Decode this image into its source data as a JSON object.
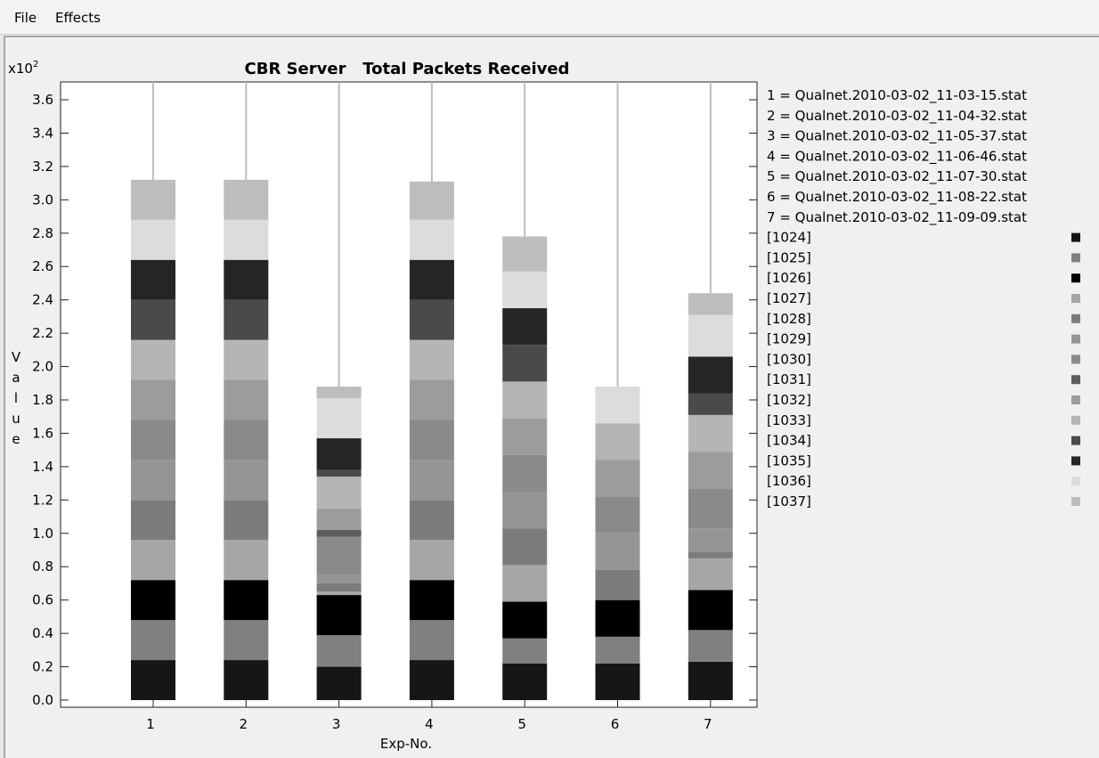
{
  "menu": {
    "file": "File",
    "effects": "Effects"
  },
  "chart_data": {
    "type": "bar",
    "stacked": true,
    "title": "CBR Server   Total Packets Received",
    "xlabel": "Exp-No.",
    "ylabel": "Value",
    "yscale_label": "x10",
    "yscale_exp": "2",
    "ylim": [
      0,
      3.6
    ],
    "yticks": [
      "0.0",
      "0.2",
      "0.4",
      "0.6",
      "0.8",
      "1.0",
      "1.2",
      "1.4",
      "1.6",
      "1.8",
      "2.0",
      "2.2",
      "2.4",
      "2.6",
      "2.8",
      "3.0",
      "3.2",
      "3.4",
      "3.6"
    ],
    "categories": [
      "1",
      "2",
      "3",
      "4",
      "5",
      "6",
      "7"
    ],
    "experiments": [
      "1 = Qualnet.2010-03-02_11-03-15.stat",
      "2 = Qualnet.2010-03-02_11-04-32.stat",
      "3 = Qualnet.2010-03-02_11-05-37.stat",
      "4 = Qualnet.2010-03-02_11-06-46.stat",
      "5 = Qualnet.2010-03-02_11-07-30.stat",
      "6 = Qualnet.2010-03-02_11-08-22.stat",
      "7 = Qualnet.2010-03-02_11-09-09.stat"
    ],
    "grid": false,
    "legend_position": "right",
    "series": [
      {
        "name": "[1024]",
        "color": "#161616",
        "values": [
          0.24,
          0.24,
          0.2,
          0.24,
          0.22,
          0.22,
          0.23
        ]
      },
      {
        "name": "[1025]",
        "color": "#808080",
        "values": [
          0.24,
          0.24,
          0.19,
          0.24,
          0.15,
          0.16,
          0.19
        ]
      },
      {
        "name": "[1026]",
        "color": "#000000",
        "values": [
          0.24,
          0.24,
          0.24,
          0.24,
          0.22,
          0.22,
          0.24
        ]
      },
      {
        "name": "[1027]",
        "color": "#a6a6a6",
        "values": [
          0.24,
          0.24,
          0.02,
          0.24,
          0.22,
          0.0,
          0.19
        ]
      },
      {
        "name": "[1028]",
        "color": "#7c7c7c",
        "values": [
          0.24,
          0.24,
          0.05,
          0.24,
          0.22,
          0.18,
          0.04
        ]
      },
      {
        "name": "[1029]",
        "color": "#959595",
        "values": [
          0.24,
          0.24,
          0.05,
          0.24,
          0.22,
          0.22,
          0.14
        ]
      },
      {
        "name": "[1030]",
        "color": "#8a8a8a",
        "values": [
          0.24,
          0.24,
          0.23,
          0.24,
          0.22,
          0.22,
          0.24
        ]
      },
      {
        "name": "[1031]",
        "color": "#5c5c5c",
        "values": [
          0.0,
          0.0,
          0.04,
          0.0,
          0.0,
          0.0,
          0.0
        ]
      },
      {
        "name": "[1032]",
        "color": "#9c9c9c",
        "values": [
          0.24,
          0.24,
          0.13,
          0.24,
          0.22,
          0.22,
          0.22
        ]
      },
      {
        "name": "[1033]",
        "color": "#b5b5b5",
        "values": [
          0.24,
          0.24,
          0.19,
          0.24,
          0.22,
          0.22,
          0.22
        ]
      },
      {
        "name": "[1034]",
        "color": "#4a4a4a",
        "values": [
          0.24,
          0.24,
          0.04,
          0.24,
          0.22,
          0.0,
          0.13
        ]
      },
      {
        "name": "[1035]",
        "color": "#252525",
        "values": [
          0.24,
          0.24,
          0.19,
          0.24,
          0.22,
          0.0,
          0.22
        ]
      },
      {
        "name": "[1036]",
        "color": "#dcdcdc",
        "values": [
          0.24,
          0.24,
          0.24,
          0.24,
          0.22,
          0.22,
          0.25
        ]
      },
      {
        "name": "[1037]",
        "color": "#bdbdbd",
        "values": [
          0.24,
          0.24,
          0.07,
          0.23,
          0.21,
          0.0,
          0.13
        ]
      }
    ]
  }
}
